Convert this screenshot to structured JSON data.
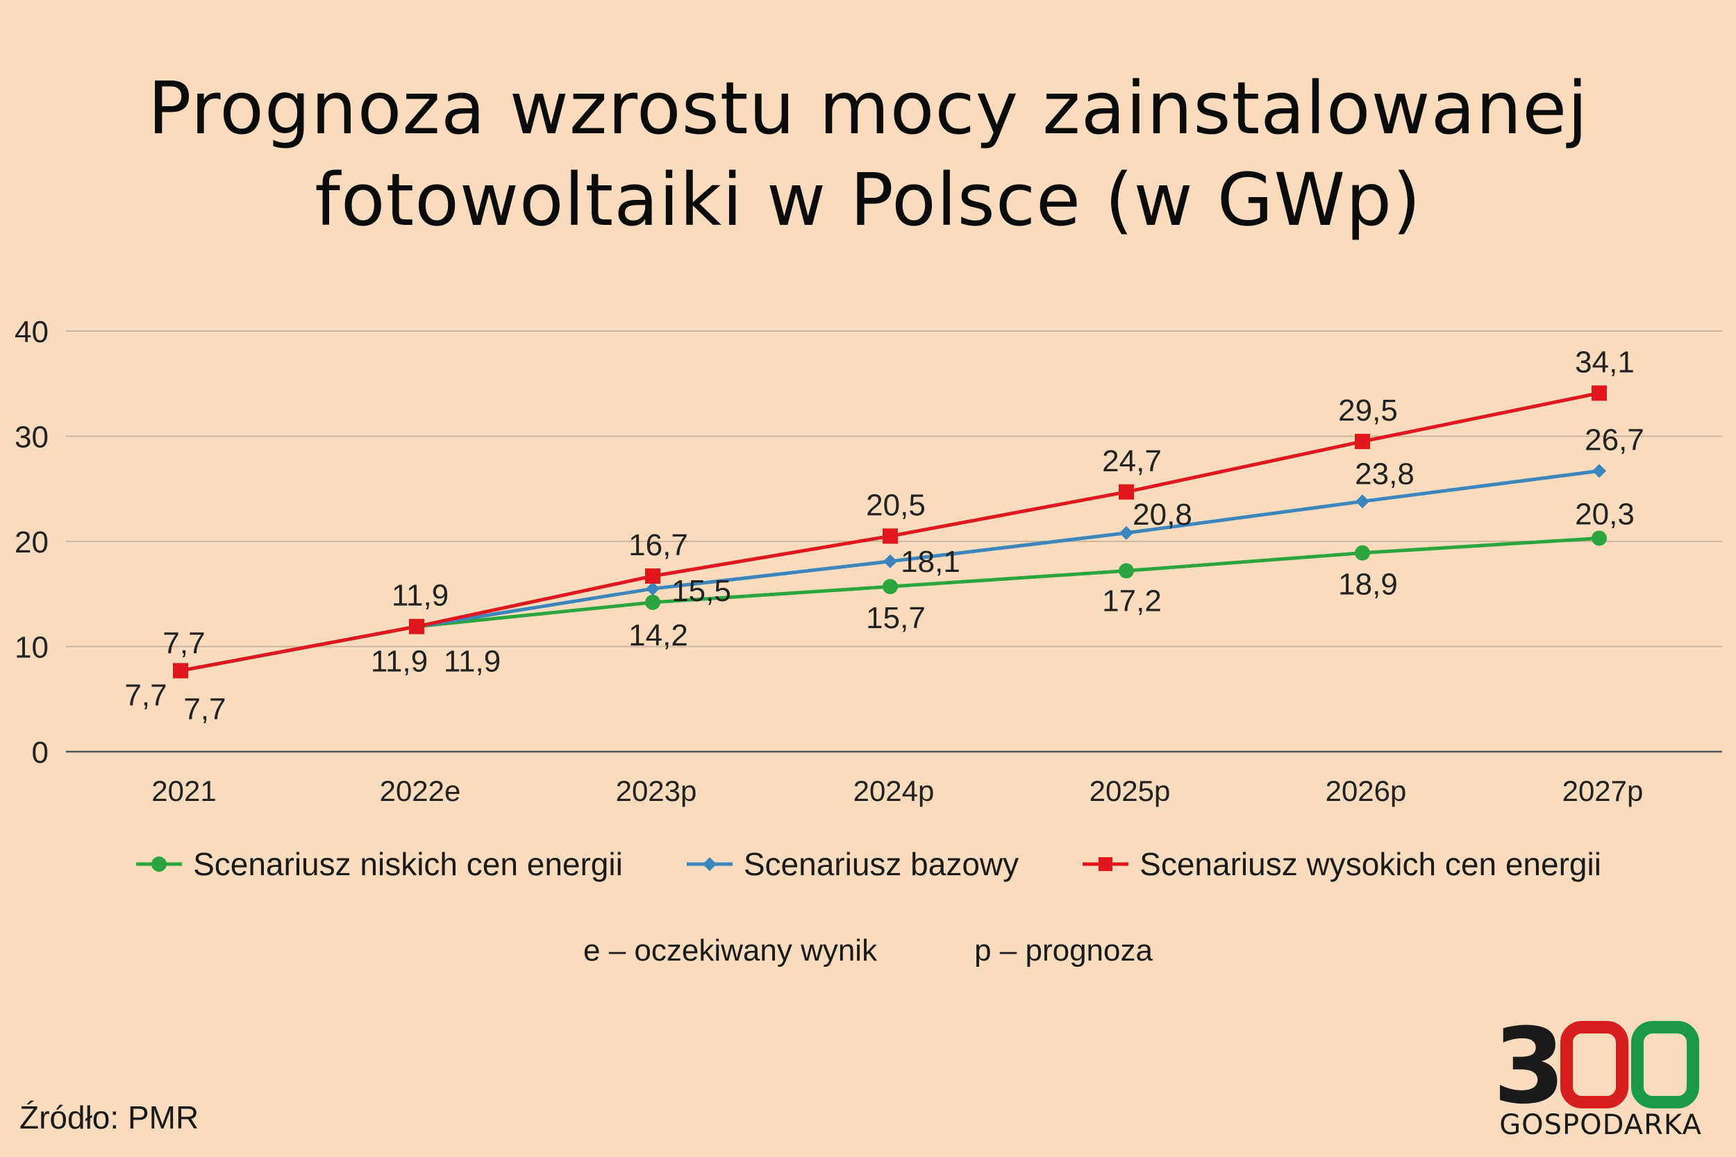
{
  "title_line1": "Prognoza wzrostu mocy zainstalowanej",
  "title_line2": "fotowoltaiki w Polsce (w GWp)",
  "notes": [
    "e – oczekiwany wynik",
    "p – prognoza"
  ],
  "source": "Źródło: PMR",
  "logo": {
    "number": "300",
    "word": "GOSPODARKA",
    "colors": [
      "#1a1a1a",
      "#d81e1e",
      "#1a9a44"
    ]
  },
  "chart_data": {
    "type": "line",
    "categories": [
      "2021",
      "2022e",
      "2023p",
      "2024p",
      "2025p",
      "2026p",
      "2027p"
    ],
    "ylim": [
      0,
      40
    ],
    "yticks": [
      "0",
      "10",
      "20",
      "30",
      "40"
    ],
    "grid": true,
    "legend_position": "bottom",
    "series": [
      {
        "name": "Scenariusz niskich cen energii",
        "color": "#2ca53f",
        "marker": "circle",
        "values": [
          7.7,
          11.9,
          14.2,
          15.7,
          17.2,
          18.9,
          20.3
        ],
        "labels": [
          "7,7",
          "11,9",
          "14,2",
          "15,7",
          "17,2",
          "18,9",
          "20,3"
        ]
      },
      {
        "name": "Scenariusz bazowy",
        "color": "#3b86bf",
        "marker": "diamond",
        "values": [
          7.7,
          11.9,
          15.5,
          18.1,
          20.8,
          23.8,
          26.7
        ],
        "labels": [
          "7,7",
          "11,9",
          "15,5",
          "18,1",
          "20,8",
          "23,8",
          "26,7"
        ]
      },
      {
        "name": "Scenariusz wysokich cen energii",
        "color": "#e0171c",
        "marker": "square",
        "values": [
          7.7,
          11.9,
          16.7,
          20.5,
          24.7,
          29.5,
          34.1
        ],
        "labels": [
          "7,7",
          "11,9",
          "16,7",
          "20,5",
          "24,7",
          "29,5",
          "34,1"
        ]
      }
    ]
  }
}
